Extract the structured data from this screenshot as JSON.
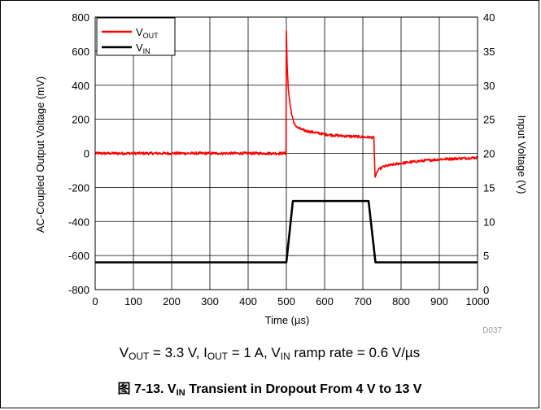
{
  "chart_data": {
    "type": "line",
    "xlabel": "Time (µs)",
    "ylabel_left": "AC-Coupled Output Voltage (mV)",
    "ylabel_right": "Input Voltage (V)",
    "xlim": [
      0,
      1000
    ],
    "ylim_left": [
      -800,
      800
    ],
    "ylim_right": [
      0,
      40
    ],
    "x_ticks": [
      0,
      100,
      200,
      300,
      400,
      500,
      600,
      700,
      800,
      900,
      1000
    ],
    "y_left_ticks": [
      -800,
      -600,
      -400,
      -200,
      0,
      200,
      400,
      600,
      800
    ],
    "y_right_ticks": [
      0,
      5,
      10,
      15,
      20,
      25,
      30,
      35,
      40
    ],
    "grid": true,
    "legend_position": "top-left",
    "series": [
      {
        "name": "V_OUT",
        "legend_main": "V",
        "legend_sub": "OUT",
        "axis": "left",
        "color": "#ff0000",
        "x": [
          0,
          100,
          200,
          300,
          400,
          499,
          500,
          502,
          505,
          510,
          515,
          520,
          530,
          545,
          560,
          580,
          600,
          625,
          650,
          675,
          700,
          720,
          729,
          730,
          732,
          735,
          740,
          745,
          750,
          760,
          775,
          800,
          850,
          900,
          950,
          1000
        ],
        "y": [
          0,
          0,
          0,
          0,
          0,
          0,
          720,
          520,
          380,
          280,
          220,
          175,
          150,
          135,
          128,
          120,
          112,
          106,
          102,
          99,
          96,
          94,
          92,
          0,
          -140,
          -120,
          -100,
          -90,
          -82,
          -75,
          -68,
          -58,
          -45,
          -35,
          -30,
          -25
        ]
      },
      {
        "name": "V_IN",
        "legend_main": "V",
        "legend_sub": "IN",
        "axis": "right",
        "color": "#000000",
        "x": [
          0,
          100,
          200,
          300,
          400,
          500,
          517,
          600,
          700,
          715,
          733,
          800,
          900,
          1000
        ],
        "y": [
          4,
          4,
          4,
          4,
          4,
          4,
          13,
          13,
          13,
          13,
          4,
          4,
          4,
          4
        ]
      }
    ],
    "annotation": "D037"
  },
  "conditions": {
    "vout_main": "V",
    "vout_sub": "OUT",
    "vout_val": " = 3.3 V, ",
    "iout_main": "I",
    "iout_sub": "OUT",
    "iout_val": " = 1 A, ",
    "vin_main": "V",
    "vin_sub": "IN",
    "vin_val": " ramp rate = 0.6 V/µs"
  },
  "caption": {
    "prefix": "图 7-13. ",
    "v_main": "V",
    "v_sub": "IN",
    "rest": " Transient in Dropout From 4 V to 13 V"
  }
}
